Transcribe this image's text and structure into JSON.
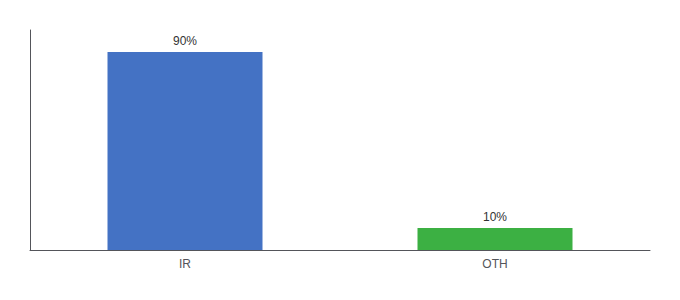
{
  "chart_data": {
    "type": "bar",
    "categories": [
      "IR",
      "OTH"
    ],
    "values": [
      90,
      10
    ],
    "value_labels": [
      "90%",
      "10%"
    ],
    "colors": [
      "#4472c4",
      "#3cb043"
    ],
    "ylim": [
      0,
      100
    ],
    "yticks": [],
    "grid": false,
    "data_labels": true,
    "tick_labels": "x"
  }
}
